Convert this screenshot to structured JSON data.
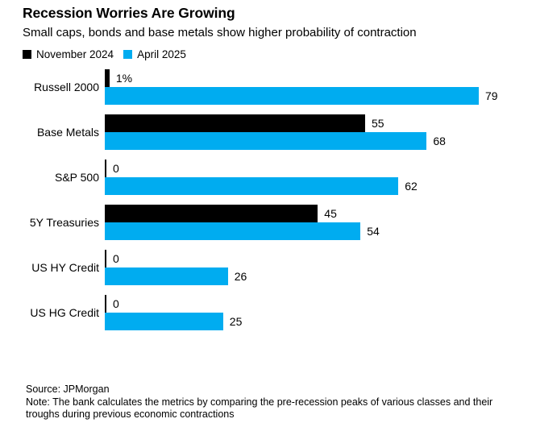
{
  "header": {
    "title": "Recession Worries Are Growing",
    "subtitle": "Small caps, bonds and base metals show higher probability of contraction"
  },
  "colors": {
    "november": "#000000",
    "april": "#00acf0",
    "background": "#ffffff",
    "text": "#000000"
  },
  "chart_data": {
    "type": "bar",
    "orientation": "horizontal",
    "title": "Recession Worries Are Growing",
    "subtitle": "Small caps, bonds and base metals show higher probability of contraction",
    "unit": "%",
    "xlim": [
      0,
      79
    ],
    "grid": false,
    "legend_position": "top-left",
    "categories": [
      "Russell 2000",
      "Base Metals",
      "S&P 500",
      "5Y Treasuries",
      "US HY Credit",
      "US HG Credit"
    ],
    "series": [
      {
        "name": "November 2024",
        "color": "#000000",
        "values": [
          1,
          55,
          0,
          45,
          0,
          0
        ],
        "value_labels": [
          "1%",
          "55",
          "0",
          "45",
          "0",
          "0"
        ]
      },
      {
        "name": "April 2025",
        "color": "#00acf0",
        "values": [
          79,
          68,
          62,
          54,
          26,
          25
        ],
        "value_labels": [
          "79",
          "68",
          "62",
          "54",
          "26",
          "25"
        ]
      }
    ]
  },
  "footer": {
    "source": "Source: JPMorgan",
    "note": "Note: The bank calculates the metrics by comparing the pre-recession peaks of various classes and their troughs during previous economic contractions"
  }
}
